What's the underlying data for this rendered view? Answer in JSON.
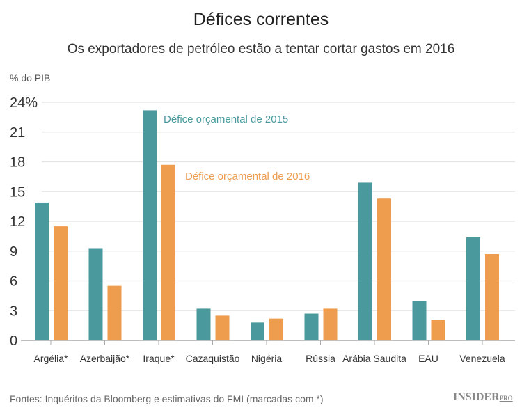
{
  "chart_data": {
    "type": "bar",
    "title": "Défices correntes",
    "subtitle": "Os exportadores de petróleo estão a tentar cortar gastos em 2016",
    "ylabel": "% do PIB",
    "ylim": [
      0,
      24
    ],
    "yticks": [
      "0",
      "3",
      "6",
      "9",
      "12",
      "15",
      "18",
      "21",
      "24%"
    ],
    "grid": true,
    "categories": [
      "Argélia*",
      "Azerbaijão*",
      "Iraque*",
      "Cazaquistão",
      "Nigéria",
      "Rússia",
      "Arábia Saudita",
      "EAU",
      "Venezuela"
    ],
    "series": [
      {
        "name": "Défice orçamental de 2015",
        "color": "#4a9a9d",
        "values": [
          13.9,
          9.3,
          23.2,
          3.2,
          1.8,
          2.7,
          15.9,
          4.0,
          10.4
        ]
      },
      {
        "name": "Défice orçamental de 2016",
        "color": "#ee9c4e",
        "values": [
          11.5,
          5.5,
          17.7,
          2.5,
          2.2,
          3.2,
          14.3,
          2.1,
          8.7
        ]
      }
    ],
    "legend": "inline-annotations"
  },
  "source": "Fontes: Inquéritos da Bloomberg e estimativas do FMI (marcadas com *)",
  "logo": "INSIDER PRO"
}
